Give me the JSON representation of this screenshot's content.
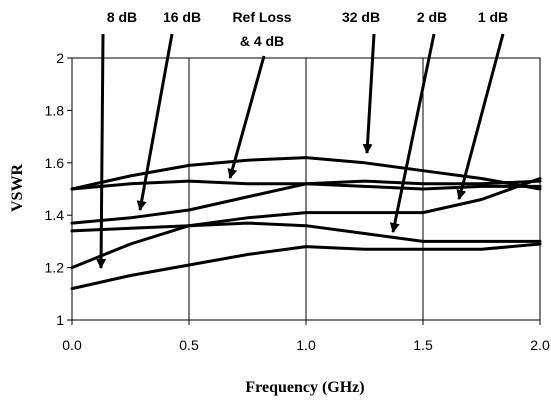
{
  "chart_data": {
    "type": "line",
    "xlabel": "Frequency (GHz)",
    "ylabel": "VSWR",
    "xlim": [
      0,
      2
    ],
    "ylim": [
      1,
      2
    ],
    "x_ticks": [
      "0.0",
      "0.5",
      "1.0",
      "1.5",
      "2.0"
    ],
    "y_ticks": [
      "1",
      "1.2",
      "1.4",
      "1.6",
      "1.8",
      "2"
    ],
    "grid": "vertical",
    "series": [
      {
        "name": "8 dB",
        "x": [
          0,
          0.25,
          0.5,
          0.75,
          1.0,
          1.25,
          1.5,
          1.75,
          2.0
        ],
        "y": [
          1.2,
          1.29,
          1.36,
          1.39,
          1.41,
          1.41,
          1.41,
          1.46,
          1.54
        ]
      },
      {
        "name": "16 dB",
        "x": [
          0,
          0.25,
          0.5,
          0.75,
          1.0,
          1.25,
          1.5,
          1.75,
          2.0
        ],
        "y": [
          1.37,
          1.39,
          1.42,
          1.47,
          1.52,
          1.53,
          1.52,
          1.52,
          1.53
        ]
      },
      {
        "name": "Ref Loss & 4 dB",
        "x": [
          0,
          0.25,
          0.5,
          0.75,
          1.0,
          1.25,
          1.5,
          1.75,
          2.0
        ],
        "y": [
          1.5,
          1.52,
          1.53,
          1.52,
          1.52,
          1.51,
          1.5,
          1.51,
          1.51
        ]
      },
      {
        "name": "32 dB",
        "x": [
          0,
          0.25,
          0.5,
          0.75,
          1.0,
          1.25,
          1.5,
          1.75,
          2.0
        ],
        "y": [
          1.5,
          1.55,
          1.59,
          1.61,
          1.62,
          1.6,
          1.57,
          1.54,
          1.5
        ]
      },
      {
        "name": "2 dB",
        "x": [
          0,
          0.25,
          0.5,
          0.75,
          1.0,
          1.25,
          1.5,
          1.75,
          2.0
        ],
        "y": [
          1.34,
          1.35,
          1.36,
          1.37,
          1.36,
          1.33,
          1.3,
          1.3,
          1.3
        ]
      },
      {
        "name": "1 dB",
        "x": [
          0,
          0.25,
          0.5,
          0.75,
          1.0,
          1.25,
          1.5,
          1.75,
          2.0
        ],
        "y": [
          1.12,
          1.17,
          1.21,
          1.25,
          1.28,
          1.27,
          1.27,
          1.27,
          1.29
        ]
      }
    ],
    "annotations": [
      {
        "text": "8 dB",
        "points_to": "8 dB"
      },
      {
        "text": "16 dB",
        "points_to": "16 dB"
      },
      {
        "text": "Ref Loss",
        "points_to": "Ref Loss & 4 dB"
      },
      {
        "text": "& 4 dB",
        "points_to": "Ref Loss & 4 dB"
      },
      {
        "text": "32 dB",
        "points_to": "32 dB"
      },
      {
        "text": "2 dB",
        "points_to": "2 dB"
      },
      {
        "text": "1 dB",
        "points_to": "1 dB"
      }
    ]
  }
}
